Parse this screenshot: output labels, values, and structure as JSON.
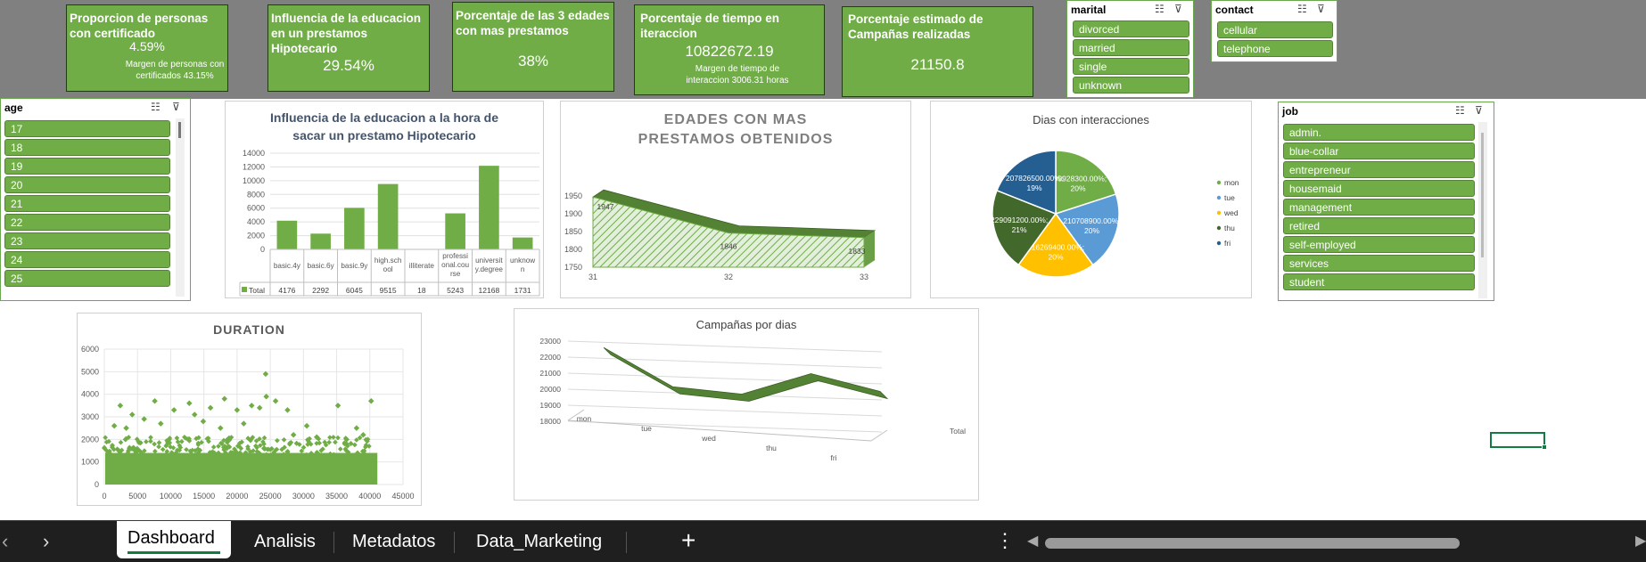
{
  "kpis": [
    {
      "title": "Proporcion de personas con certificado",
      "value": "4.59%",
      "margin": "Margen de personas con certificados 43.15%"
    },
    {
      "title": "Influencia de la educacion en un prestamos Hipotecario",
      "value": "29.54%"
    },
    {
      "title": "Porcentaje de las 3 edades con mas prestamos",
      "value": "38%"
    },
    {
      "title": "Porcentaje de tiempo en iteraccion",
      "value": "10822672.19",
      "margin": "Margen de tiempo de interaccion  3006.31 horas"
    },
    {
      "title": "Porcentaje estimado de Campañas realizadas",
      "value": "21150.8"
    }
  ],
  "slicers": {
    "marital": {
      "title": "marital",
      "items": [
        "divorced",
        "married",
        "single",
        "unknown"
      ]
    },
    "contact": {
      "title": "contact",
      "items": [
        "cellular",
        "telephone"
      ]
    },
    "age": {
      "title": "age",
      "items": [
        "17",
        "18",
        "19",
        "20",
        "21",
        "22",
        "23",
        "24",
        "25"
      ]
    },
    "job": {
      "title": "job",
      "items": [
        "admin.",
        "blue-collar",
        "entrepreneur",
        "housemaid",
        "management",
        "retired",
        "self-employed",
        "services",
        "student"
      ]
    }
  },
  "chart_data": [
    {
      "type": "bar",
      "title": "Influencia de la educacion a la hora de sacar un prestamo Hipotecario",
      "categories": [
        "basic.4y",
        "basic.6y",
        "basic.9y",
        "high.school",
        "illiterate",
        "professional.course",
        "university.degree",
        "unknown"
      ],
      "table_labels": [
        [
          "basic.4y"
        ],
        [
          "basic.6y"
        ],
        [
          "basic.9y"
        ],
        [
          "high.sch",
          "ool"
        ],
        [
          "illiterate"
        ],
        [
          "professi",
          "onal.cou",
          "rse"
        ],
        [
          "universit",
          "y.degree"
        ],
        [
          "unknow",
          "n"
        ]
      ],
      "series": [
        {
          "name": "Total",
          "values": [
            4176,
            2292,
            6045,
            9515,
            18,
            5243,
            12168,
            1731
          ]
        }
      ],
      "yticks": [
        "0",
        "2000",
        "4000",
        "6000",
        "8000",
        "10000",
        "12000",
        "14000"
      ],
      "ylim": [
        0,
        14000
      ],
      "color": "#70ad47"
    },
    {
      "type": "area",
      "title": "EDADES CON MAS PRESTAMOS OBTENIDOS",
      "categories": [
        "31",
        "32",
        "33"
      ],
      "values": [
        1947,
        1846,
        1833
      ],
      "yticks": [
        "1750",
        "1800",
        "1850",
        "1900",
        "1950"
      ],
      "ylim": [
        1750,
        1950
      ],
      "color": "#70ad47"
    },
    {
      "type": "pie",
      "title": "Dias con interacciones",
      "slices": [
        {
          "name": "mon",
          "label": "209928300.00%; 20%",
          "value": 20,
          "color": "#70ad47"
        },
        {
          "name": "tue",
          "label": "210708900.00%; 20%",
          "value": 20,
          "color": "#5b9bd5"
        },
        {
          "name": "wed",
          "label": "216269400.00%; 20%",
          "value": 20,
          "color": "#ffc000"
        },
        {
          "name": "thu",
          "label": "229091200.00%; 21%",
          "value": 21,
          "color": "#43682b"
        },
        {
          "name": "fri",
          "label": "207826500.00%; 19%",
          "value": 19,
          "color": "#255e91"
        }
      ]
    },
    {
      "type": "scatter",
      "title": "DURATION",
      "xlim": [
        0,
        45000
      ],
      "ylim": [
        0,
        6000
      ],
      "xticks": [
        "0",
        "5000",
        "10000",
        "15000",
        "20000",
        "25000",
        "30000",
        "35000",
        "40000",
        "45000"
      ],
      "yticks": [
        "0",
        "1000",
        "2000",
        "3000",
        "4000",
        "5000",
        "6000"
      ],
      "points": [
        [
          2400,
          3500
        ],
        [
          4200,
          3100
        ],
        [
          7600,
          3700
        ],
        [
          10500,
          3300
        ],
        [
          12800,
          3600
        ],
        [
          13600,
          3100
        ],
        [
          16000,
          3400
        ],
        [
          18100,
          3800
        ],
        [
          20000,
          3300
        ],
        [
          22200,
          3500
        ],
        [
          23400,
          3400
        ],
        [
          24300,
          4900
        ],
        [
          24400,
          3900
        ],
        [
          25800,
          3700
        ],
        [
          27600,
          3300
        ],
        [
          30500,
          2600
        ],
        [
          35200,
          3500
        ],
        [
          38000,
          2500
        ],
        [
          39000,
          2200
        ],
        [
          40200,
          3700
        ],
        [
          1500,
          2600
        ],
        [
          3300,
          2500
        ],
        [
          6000,
          2900
        ],
        [
          8500,
          2700
        ],
        [
          14900,
          2800
        ],
        [
          17500,
          2500
        ],
        [
          21000,
          2700
        ],
        [
          28500,
          2200
        ],
        [
          32000,
          2100
        ],
        [
          36500,
          2000
        ]
      ],
      "bulk_ymax": 2000,
      "color": "#70ad47"
    },
    {
      "type": "line",
      "title": "Campañas por dias",
      "categories": [
        "mon",
        "tue",
        "wed",
        "thu",
        "fri"
      ],
      "values": [
        22600,
        20400,
        20200,
        21600,
        20800
      ],
      "yticks": [
        "18000",
        "19000",
        "20000",
        "21000",
        "22000",
        "23000"
      ],
      "ylim": [
        18000,
        23000
      ],
      "series_label": "Total",
      "color": "#548235"
    }
  ],
  "tabs": [
    "Dashboard",
    "Analisis",
    "Metadatos",
    "Data_Marketing"
  ],
  "active_tab": "Dashboard",
  "icons": {
    "prev": "chevron-left-icon",
    "next": "chevron-right-icon",
    "add": "plus-icon",
    "more": "vertical-ellipsis-icon",
    "multiselect": "multi-select-icon",
    "clear_filter": "clear-filter-icon"
  },
  "colors": {
    "kpi": "#70ad47",
    "banner": "#808080",
    "tabbar": "#1f1f1f",
    "active_tab": "#ffffff",
    "accent": "#107c41"
  }
}
